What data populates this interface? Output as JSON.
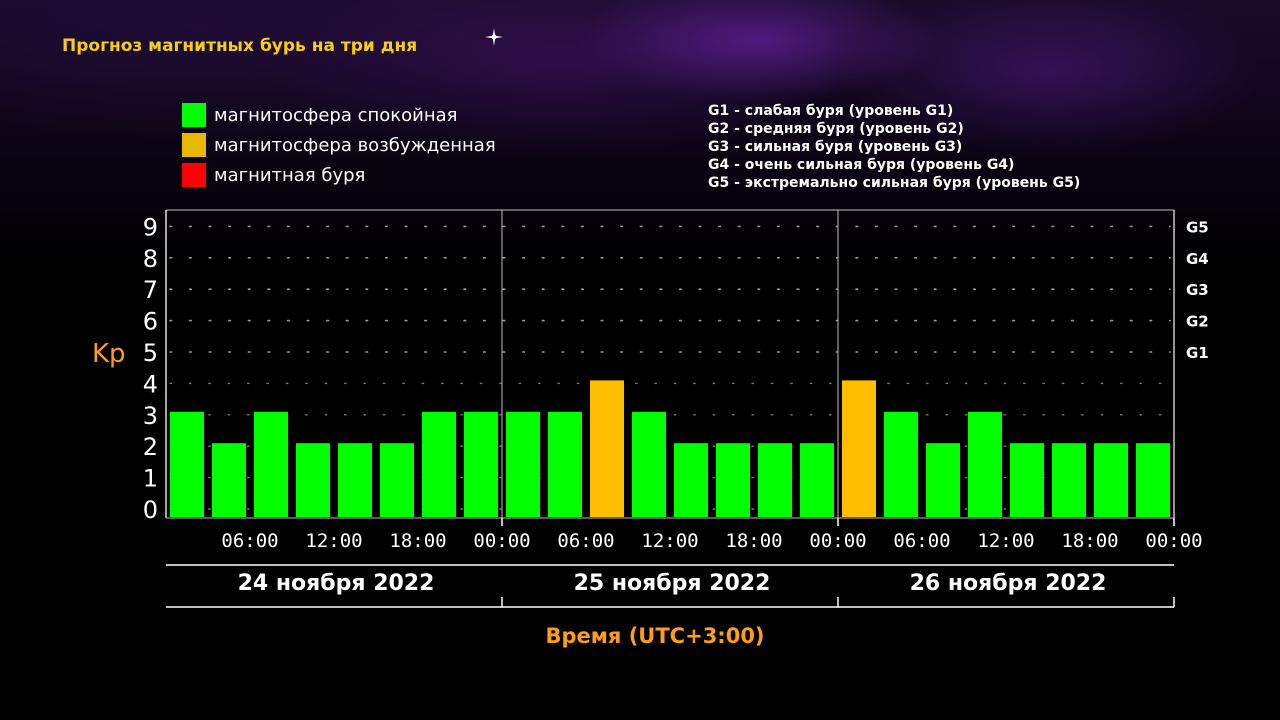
{
  "header": {
    "title": "Прогноз магнитных бурь на три дня"
  },
  "legend": [
    {
      "label": "магнитосфера спокойная",
      "color": "#00ff00"
    },
    {
      "label": "магнитосфера возбужденная",
      "color": "#e6b800"
    },
    {
      "label": "магнитная буря",
      "color": "#ff0000"
    }
  ],
  "storm_levels": [
    "G1 - слабая буря (уровень G1)",
    "G2 - средняя буря (уровень G2)",
    "G3 - сильная буря (уровень G3)",
    "G4 - очень сильная буря (уровень G4)",
    "G5 - экстремально сильная буря (уровень G5)"
  ],
  "colors": {
    "quiet": "#00ff00",
    "active": "#ffbf00",
    "storm": "#ff0000",
    "title": "#f5cf16",
    "axis_label": "#ff9d1a"
  },
  "chart_data": {
    "type": "bar",
    "ylabel": "Kp",
    "xlabel": "Время (UTC+3:00)",
    "ylim": [
      0,
      9
    ],
    "yticks": [
      "0",
      "1",
      "2",
      "3",
      "4",
      "5",
      "6",
      "7",
      "8",
      "9"
    ],
    "right_ticks": [
      {
        "label": "G1",
        "kp": 5
      },
      {
        "label": "G2",
        "kp": 6
      },
      {
        "label": "G3",
        "kp": 7
      },
      {
        "label": "G4",
        "kp": 8
      },
      {
        "label": "G5",
        "kp": 9
      }
    ],
    "grid": true,
    "interval_hours": 3,
    "days": [
      "24 ноября 2022",
      "25 ноября 2022",
      "26 ноября 2022"
    ],
    "x_tick_labels": [
      "06:00",
      "12:00",
      "18:00",
      "00:00",
      "06:00",
      "12:00",
      "18:00",
      "00:00",
      "06:00",
      "12:00",
      "18:00",
      "00:00"
    ],
    "values": [
      3,
      2,
      3,
      2,
      2,
      2,
      3,
      3,
      3,
      3,
      4,
      3,
      2,
      2,
      2,
      2,
      4,
      3,
      2,
      3,
      2,
      2,
      2,
      2
    ],
    "levels": [
      "quiet",
      "quiet",
      "quiet",
      "quiet",
      "quiet",
      "quiet",
      "quiet",
      "quiet",
      "quiet",
      "quiet",
      "active",
      "quiet",
      "quiet",
      "quiet",
      "quiet",
      "quiet",
      "active",
      "quiet",
      "quiet",
      "quiet",
      "quiet",
      "quiet",
      "quiet",
      "quiet"
    ]
  }
}
